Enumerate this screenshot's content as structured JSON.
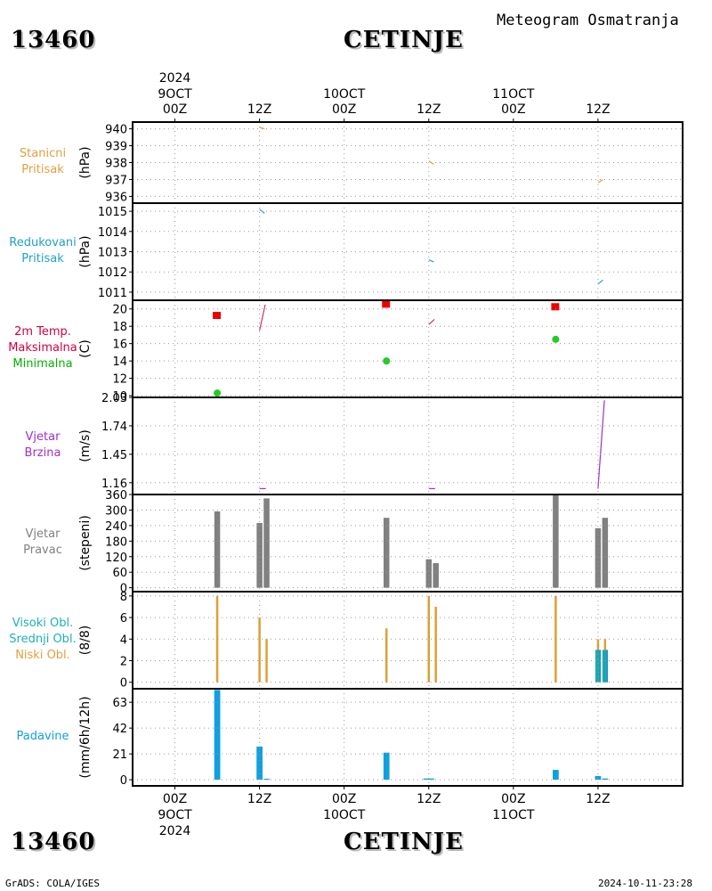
{
  "header": {
    "station_id": "13460",
    "station_name": "CETINJE",
    "product": "Meteogram Osmatranja"
  },
  "footer": {
    "station_id": "13460",
    "station_name": "CETINJE",
    "source": "GrADS: COLA/IGES",
    "timestamp": "2024-10-11-23:28"
  },
  "time_axis": {
    "year": "2024",
    "ticks": [
      {
        "hour": "00Z",
        "date": "9OCT"
      },
      {
        "hour": "12Z",
        "date": ""
      },
      {
        "hour": "00Z",
        "date": "10OCT"
      },
      {
        "hour": "12Z",
        "date": ""
      },
      {
        "hour": "00Z",
        "date": "11OCT"
      },
      {
        "hour": "12Z",
        "date": ""
      }
    ]
  },
  "chart_data": [
    {
      "type": "line",
      "panel": "pressure",
      "side_label": [
        "Stanicni",
        "Pritisak"
      ],
      "ylabel": "(hPa)",
      "ylim": [
        935.6,
        940.4
      ],
      "ticks": [
        940,
        939,
        938,
        937,
        936
      ],
      "color": "#e0a040",
      "segments": [
        [
          {
            "x": 12,
            "y": 940.1
          },
          {
            "x": 12.7,
            "y": 940.0
          }
        ],
        [
          {
            "x": 36,
            "y": 938.1
          },
          {
            "x": 36.7,
            "y": 937.9
          }
        ],
        [
          {
            "x": 60,
            "y": 936.8
          },
          {
            "x": 60.7,
            "y": 937.0
          }
        ]
      ]
    },
    {
      "type": "line",
      "panel": "reduced-pressure",
      "side_label": [
        "Redukovani",
        "Pritisak"
      ],
      "ylabel": "(hPa)",
      "ylim": [
        1010.6,
        1015.4
      ],
      "ticks": [
        1015,
        1014,
        1013,
        1012,
        1011
      ],
      "color": "#20a0c8",
      "segments": [
        [
          {
            "x": 12,
            "y": 1015.1
          },
          {
            "x": 12.7,
            "y": 1014.9
          }
        ],
        [
          {
            "x": 36,
            "y": 1012.6
          },
          {
            "x": 36.7,
            "y": 1012.5
          }
        ],
        [
          {
            "x": 60,
            "y": 1011.4
          },
          {
            "x": 60.7,
            "y": 1011.6
          }
        ]
      ]
    },
    {
      "type": "scatter",
      "panel": "temperature",
      "side_label": [
        "2m Temp.",
        "Maksimalna",
        "Minimalna"
      ],
      "side_label_colors": [
        "#d00040",
        "#d00040",
        "#00b000"
      ],
      "ylabel": "(C)",
      "ylim": [
        9.8,
        21.0
      ],
      "ticks": [
        20,
        18,
        16,
        14,
        12,
        10
      ],
      "temp_color": "#d0306a",
      "max_color": "#ee0000",
      "min_color": "#22cc22",
      "temp_segments": [
        [
          {
            "x": 12,
            "y": 17.5
          },
          {
            "x": 12.8,
            "y": 20.5
          }
        ],
        [
          {
            "x": 36,
            "y": 18.2
          },
          {
            "x": 36.8,
            "y": 18.8
          }
        ]
      ],
      "maximum": [
        {
          "x": 6,
          "y": 19.2
        },
        {
          "x": 30,
          "y": 20.5
        },
        {
          "x": 54,
          "y": 20.2
        }
      ],
      "minimum": [
        {
          "x": 6,
          "y": 10.3
        },
        {
          "x": 30,
          "y": 14.0
        },
        {
          "x": 54,
          "y": 16.5
        }
      ]
    },
    {
      "type": "line",
      "panel": "wind-speed",
      "side_label": [
        "Vjetar",
        "Brzina"
      ],
      "ylabel": "(m/s)",
      "ylim": [
        1.04,
        2.03
      ],
      "ticks": [
        2.03,
        1.74,
        1.45,
        1.16
      ],
      "color": "#a030c8",
      "segments": [
        [
          {
            "x": 12,
            "y": 1.1
          },
          {
            "x": 12.9,
            "y": 1.1
          }
        ],
        [
          {
            "x": 36,
            "y": 1.1
          },
          {
            "x": 36.9,
            "y": 1.1
          }
        ],
        [
          {
            "x": 60,
            "y": 1.1
          },
          {
            "x": 60.9,
            "y": 2.0
          }
        ]
      ]
    },
    {
      "type": "bar",
      "panel": "wind-direction",
      "side_label": [
        "Vjetar",
        "Pravac"
      ],
      "ylabel": "(stepeni)",
      "ylim": [
        -15,
        360
      ],
      "ticks": [
        360,
        300,
        240,
        180,
        120,
        60,
        0
      ],
      "color": "#808080",
      "bars": [
        {
          "x": 6,
          "y": 295
        },
        {
          "x": 12,
          "y": 250
        },
        {
          "x": 13,
          "y": 345
        },
        {
          "x": 30,
          "y": 270
        },
        {
          "x": 36,
          "y": 110
        },
        {
          "x": 37,
          "y": 95
        },
        {
          "x": 54,
          "y": 360
        },
        {
          "x": 60,
          "y": 230
        },
        {
          "x": 61,
          "y": 270
        }
      ]
    },
    {
      "type": "bar",
      "panel": "cloud-cover",
      "side_label": [
        "Visoki Obl.",
        "Srednji Obl.",
        "Niski Obl."
      ],
      "side_label_colors": [
        "#20b0b0",
        "#20b0b0",
        "#e0a040"
      ],
      "ylabel": "(8/8)",
      "ylim": [
        -0.6,
        8.4
      ],
      "ticks": [
        8,
        6,
        4,
        2,
        0
      ],
      "series": [
        {
          "name": "Niski Obl.",
          "color": "#e0a030",
          "bars": [
            {
              "x": 6,
              "y": 8
            },
            {
              "x": 12,
              "y": 6
            },
            {
              "x": 13,
              "y": 4
            },
            {
              "x": 30,
              "y": 5
            },
            {
              "x": 36,
              "y": 8
            },
            {
              "x": 37,
              "y": 7
            },
            {
              "x": 54,
              "y": 8
            },
            {
              "x": 60,
              "y": 4
            },
            {
              "x": 61,
              "y": 4
            }
          ]
        },
        {
          "name": "Srednji Obl.",
          "color": "#20a8a8",
          "bars": [
            {
              "x": 60,
              "y": 3
            },
            {
              "x": 61,
              "y": 3
            }
          ]
        },
        {
          "name": "Visoki Obl.",
          "color": "#1890e0",
          "bars": [
            {
              "x": 60,
              "y": 3
            },
            {
              "x": 61,
              "y": 3
            }
          ]
        }
      ]
    },
    {
      "type": "bar",
      "panel": "precipitation",
      "side_label": [
        "Padavine"
      ],
      "ylabel": "(mm/6h/12h)",
      "ylim": [
        -5,
        74
      ],
      "ticks": [
        63,
        42,
        21,
        0
      ],
      "color": "#10a0e0",
      "bars": [
        {
          "x": 6,
          "y": 73,
          "w": 1
        },
        {
          "x": 12,
          "y": 27,
          "w": 1
        },
        {
          "x": 13,
          "y": 0.8,
          "w": 1
        },
        {
          "x": 30,
          "y": 22,
          "w": 1
        },
        {
          "x": 36,
          "y": 1,
          "w": 1.8
        },
        {
          "x": 54,
          "y": 8,
          "w": 1
        },
        {
          "x": 60,
          "y": 3,
          "w": 1
        },
        {
          "x": 61,
          "y": 1,
          "w": 1
        }
      ]
    }
  ]
}
